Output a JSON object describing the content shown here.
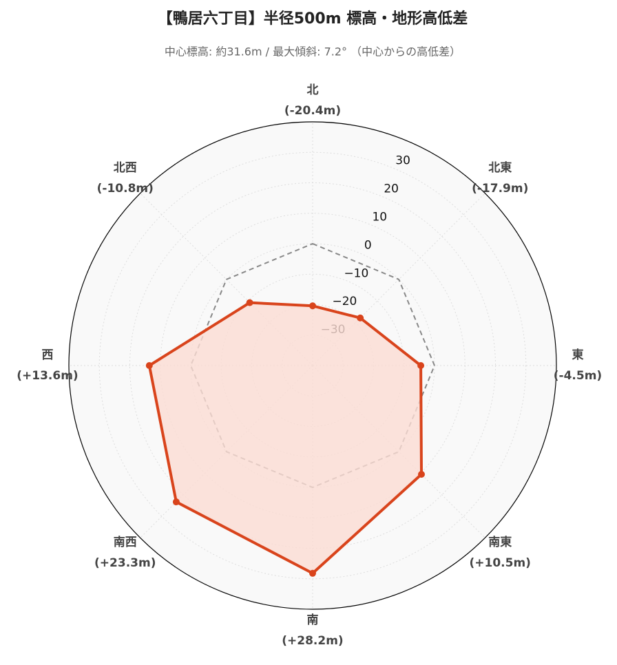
{
  "chart_data": {
    "type": "radar",
    "title": "【鴨居六丁目】半径500m 標高・地形高低差",
    "subtitle": "中心標高: 約31.6m / 最大傾斜: 7.2°  （中心からの高低差）",
    "categories": [
      "北",
      "北東",
      "東",
      "南東",
      "南",
      "南西",
      "西",
      "北西"
    ],
    "values": [
      -20.4,
      -17.9,
      -4.5,
      10.5,
      28.2,
      23.3,
      13.6,
      -10.8
    ],
    "value_labels": [
      "(-20.4m)",
      "(-17.9m)",
      "(-4.5m)",
      "(+10.5m)",
      "(+28.2m)",
      "(+23.3m)",
      "(+13.6m)",
      "(-10.8m)"
    ],
    "color": "#d9441c",
    "fill_color": "#fbdcd3",
    "reference": 0,
    "ylim": [
      -40,
      40
    ],
    "yticks": [
      {
        "value": -30,
        "label": "−30"
      },
      {
        "value": -20,
        "label": "−20"
      },
      {
        "value": -10,
        "label": "−10"
      },
      0,
      10,
      20,
      30
    ],
    "grid": true
  }
}
